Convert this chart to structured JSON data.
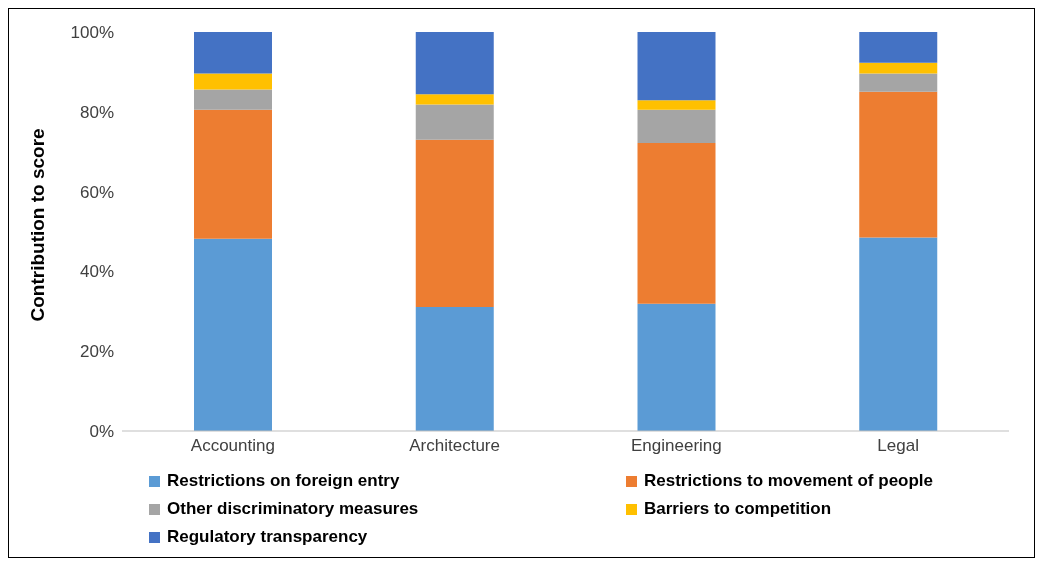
{
  "chart_data": {
    "type": "bar",
    "stacked": true,
    "ylabel": "Contribution to score",
    "categories": [
      "Accounting",
      "Architecture",
      "Engineering",
      "Legal"
    ],
    "series": [
      {
        "name": "Restrictions on foreign entry",
        "color": "#5b9bd5",
        "values": [
          48.2,
          31.1,
          31.9,
          48.5
        ]
      },
      {
        "name": "Restrictions to movement of people",
        "color": "#ed7d31",
        "values": [
          32.3,
          41.9,
          40.3,
          36.5
        ]
      },
      {
        "name": "Other discriminatory measures",
        "color": "#a5a5a5",
        "values": [
          5.1,
          8.8,
          8.3,
          4.6
        ]
      },
      {
        "name": "Barriers to competition",
        "color": "#ffc000",
        "values": [
          4,
          2.6,
          2.4,
          2.7
        ]
      },
      {
        "name": "Regulatory transparency",
        "color": "#4472c4",
        "values": [
          10.4,
          15.6,
          17.1,
          7.7
        ]
      }
    ],
    "ylim": [
      0,
      100
    ],
    "yticks": [
      {
        "value": 0,
        "label": "0%"
      },
      {
        "value": 20,
        "label": "20%"
      },
      {
        "value": 40,
        "label": "40%"
      },
      {
        "value": 60,
        "label": "60%"
      },
      {
        "value": 80,
        "label": "80%"
      },
      {
        "value": 100,
        "label": "100%"
      }
    ],
    "grid": false,
    "legend": "bottom"
  }
}
